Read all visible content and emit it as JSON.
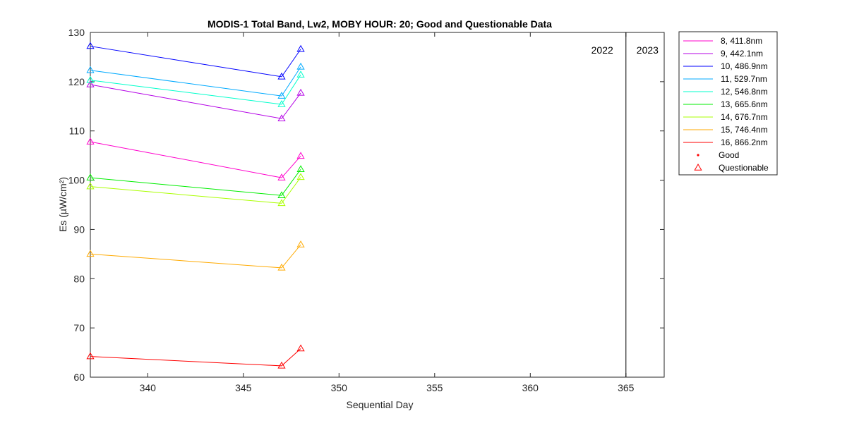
{
  "chart_data": {
    "type": "line",
    "title": "MODIS-1 Total Band,  Lw2, MOBY HOUR: 20;  Good and Questionable Data",
    "xlabel": "Sequential Day",
    "ylabel": "Es (µW/cm²)",
    "xlim": [
      337,
      367
    ],
    "ylim": [
      60,
      130
    ],
    "xticks": [
      340,
      345,
      350,
      355,
      360,
      365
    ],
    "yticks": [
      60,
      70,
      80,
      90,
      100,
      110,
      120,
      130
    ],
    "grid": false,
    "legend_position": "outside-right",
    "x": [
      337,
      347,
      348
    ],
    "series": [
      {
        "name": "8, 411.8nm",
        "color": "#ff00cc",
        "values": [
          107.8,
          100.5,
          104.9
        ]
      },
      {
        "name": "9, 442.1nm",
        "color": "#b400e6",
        "values": [
          119.4,
          112.5,
          117.7
        ]
      },
      {
        "name": "10, 486.9nm",
        "color": "#0000ff",
        "values": [
          127.2,
          121.0,
          126.6
        ]
      },
      {
        "name": "11, 529.7nm",
        "color": "#00aaff",
        "values": [
          122.3,
          117.1,
          123.0
        ]
      },
      {
        "name": "12, 546.8nm",
        "color": "#00ffcc",
        "values": [
          120.3,
          115.4,
          121.4
        ]
      },
      {
        "name": "13, 665.6nm",
        "color": "#00ee00",
        "values": [
          100.5,
          96.9,
          102.2
        ]
      },
      {
        "name": "14, 676.7nm",
        "color": "#aaff00",
        "values": [
          98.7,
          95.3,
          100.6
        ]
      },
      {
        "name": "15, 746.4nm",
        "color": "#ffaa00",
        "values": [
          85.0,
          82.2,
          86.9
        ]
      },
      {
        "name": "16, 866.2nm",
        "color": "#ff0000",
        "values": [
          64.2,
          62.3,
          65.8
        ]
      }
    ],
    "marker_legend": [
      {
        "label": "Good",
        "marker": "dot",
        "color": "#ff0000"
      },
      {
        "label": "Questionable",
        "marker": "triangle",
        "color": "#ff0000"
      }
    ],
    "year_divider": {
      "x": 365,
      "labels": [
        "2022",
        "2023"
      ]
    }
  }
}
